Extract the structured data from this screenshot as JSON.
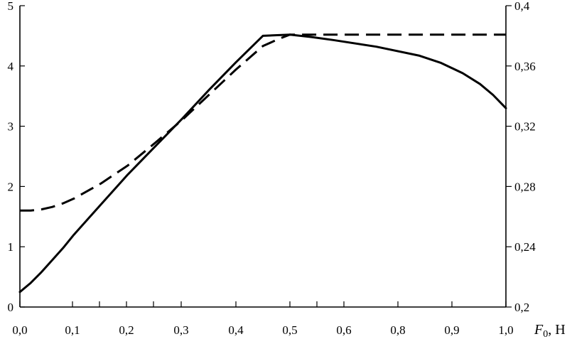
{
  "chart_data": {
    "type": "line",
    "x_ticks": [
      "0,0",
      "0,1",
      "0,2",
      "0,3",
      "0,4",
      "0,5",
      "0,6",
      "0,8",
      "0,9",
      "1,0"
    ],
    "x_title_main": "F",
    "x_title_sub": "0",
    "x_title_unit": ", Н",
    "y_left": {
      "ylim": [
        0,
        5
      ],
      "ticks": [
        "0",
        "1",
        "2",
        "3",
        "4",
        "5"
      ]
    },
    "y_right": {
      "ylim": [
        0.2,
        0.4
      ],
      "ticks": [
        "0,2",
        "0,24",
        "0,28",
        "0,32",
        "0,36",
        "0,4"
      ]
    },
    "series": [
      {
        "style": "solid",
        "axis": "left",
        "x": [
          0.0,
          0.02,
          0.04,
          0.06,
          0.08,
          0.1,
          0.15,
          0.2,
          0.25,
          0.3,
          0.35,
          0.4,
          0.45,
          0.5,
          0.55,
          0.6,
          0.7,
          0.8,
          0.85,
          0.9,
          0.94,
          0.97,
          1.0
        ],
        "y": [
          0.25,
          0.4,
          0.58,
          0.78,
          0.98,
          1.2,
          1.7,
          2.2,
          2.66,
          3.12,
          3.6,
          4.06,
          4.5,
          4.52,
          4.48,
          4.43,
          4.32,
          4.17,
          4.05,
          3.88,
          3.7,
          3.52,
          3.3
        ]
      },
      {
        "style": "dashed",
        "axis": "left",
        "x": [
          0.0,
          0.02,
          0.04,
          0.06,
          0.08,
          0.1,
          0.15,
          0.2,
          0.25,
          0.3,
          0.35,
          0.4,
          0.45,
          0.48,
          0.5,
          0.55,
          0.6,
          0.7,
          0.8,
          0.9,
          1.0
        ],
        "y": [
          1.6,
          1.6,
          1.62,
          1.66,
          1.72,
          1.8,
          2.05,
          2.35,
          2.72,
          3.1,
          3.52,
          3.94,
          4.33,
          4.45,
          4.52,
          4.52,
          4.52,
          4.52,
          4.52,
          4.52,
          4.52
        ]
      }
    ]
  }
}
